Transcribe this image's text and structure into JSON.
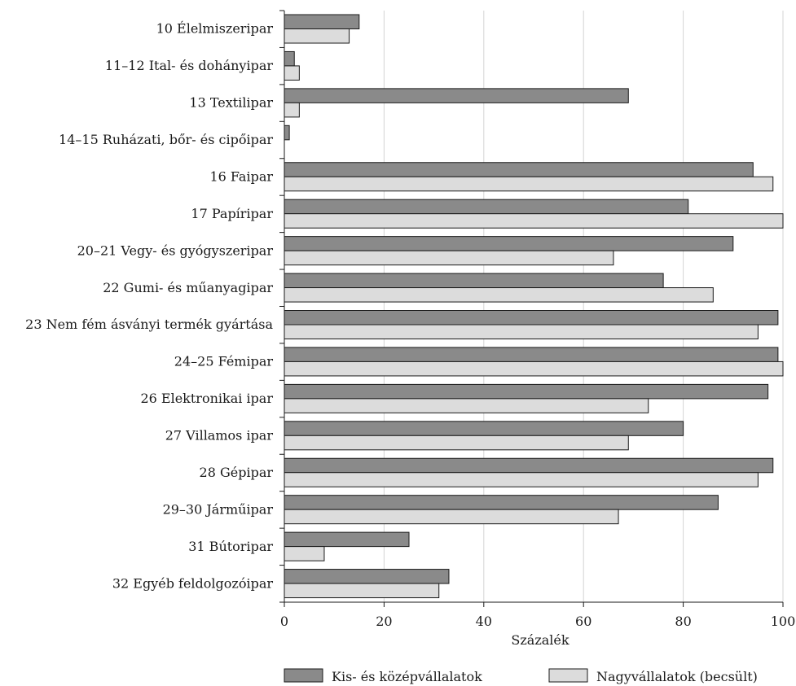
{
  "chart_data": {
    "type": "bar",
    "orientation": "horizontal",
    "categories": [
      "10 Élelmiszeripar",
      "11–12 Ital- és dohányipar",
      "13 Textilipar",
      "14–15 Ruházati, bőr- és cipőipar",
      "16 Faipar",
      "17 Papíripar",
      "20–21 Vegy- és gyógyszeripar",
      "22 Gumi- és műanyagipar",
      "23 Nem fém ásványi termék gyártása",
      "24–25 Fémipar",
      "26 Elektronikai ipar",
      "27 Villamos ipar",
      "28 Gépipar",
      "29–30 Járműipar",
      "31 Bútoripar",
      "32 Egyéb feldolgozóipar"
    ],
    "series": [
      {
        "name": "Kis- és középvállalatok",
        "color": "#8a8a8a",
        "values": [
          15,
          2,
          69,
          1,
          94,
          81,
          90,
          76,
          99,
          99,
          97,
          80,
          98,
          87,
          25,
          33
        ]
      },
      {
        "name": "Nagyvállalatok (becsült)",
        "color": "#dcdcdc",
        "values": [
          13,
          3,
          3,
          0,
          98,
          100,
          66,
          86,
          95,
          100,
          73,
          69,
          95,
          67,
          8,
          31
        ]
      }
    ],
    "xlabel": "Százalék",
    "xlim": [
      0,
      100
    ],
    "xticks": [
      0,
      20,
      40,
      60,
      80,
      100
    ],
    "grid": "vertical",
    "legend_position": "bottom"
  }
}
